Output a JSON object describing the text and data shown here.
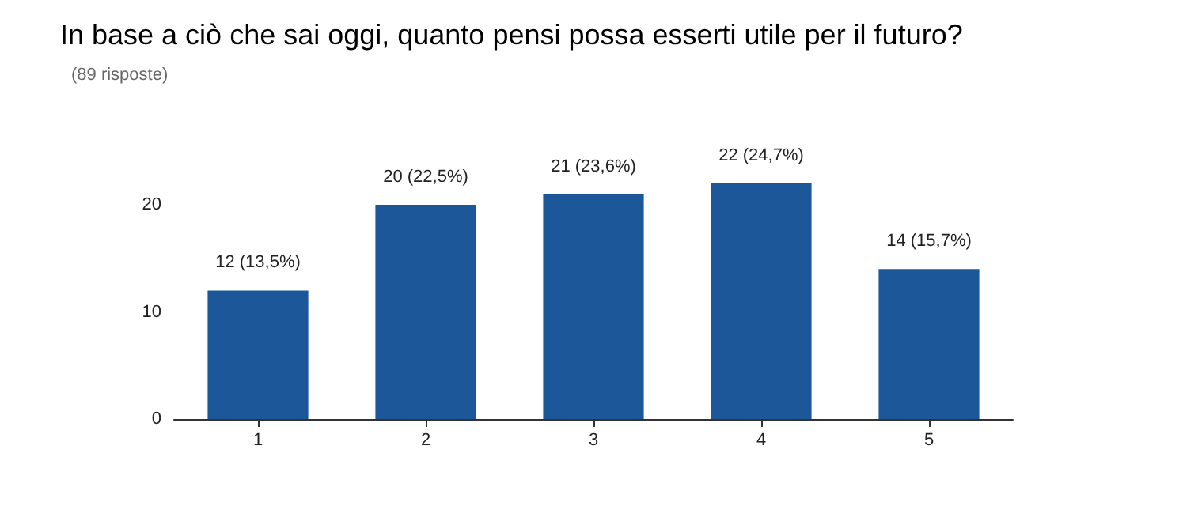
{
  "chart_data": {
    "type": "bar",
    "title": "In base a ciò che sai oggi, quanto pensi possa esserti utile per il futuro?",
    "subtitle": "(89 risposte)",
    "categories": [
      "1",
      "2",
      "3",
      "4",
      "5"
    ],
    "values": [
      12,
      20,
      21,
      22,
      14
    ],
    "value_labels": [
      "12 (13,5%)",
      "20 (22,5%)",
      "21 (23,6%)",
      "22 (24,7%)",
      "14 (15,7%)"
    ],
    "color": "#1c5899",
    "ylim": [
      0,
      22
    ],
    "yticks": [
      0,
      10,
      20
    ],
    "grid": false
  }
}
